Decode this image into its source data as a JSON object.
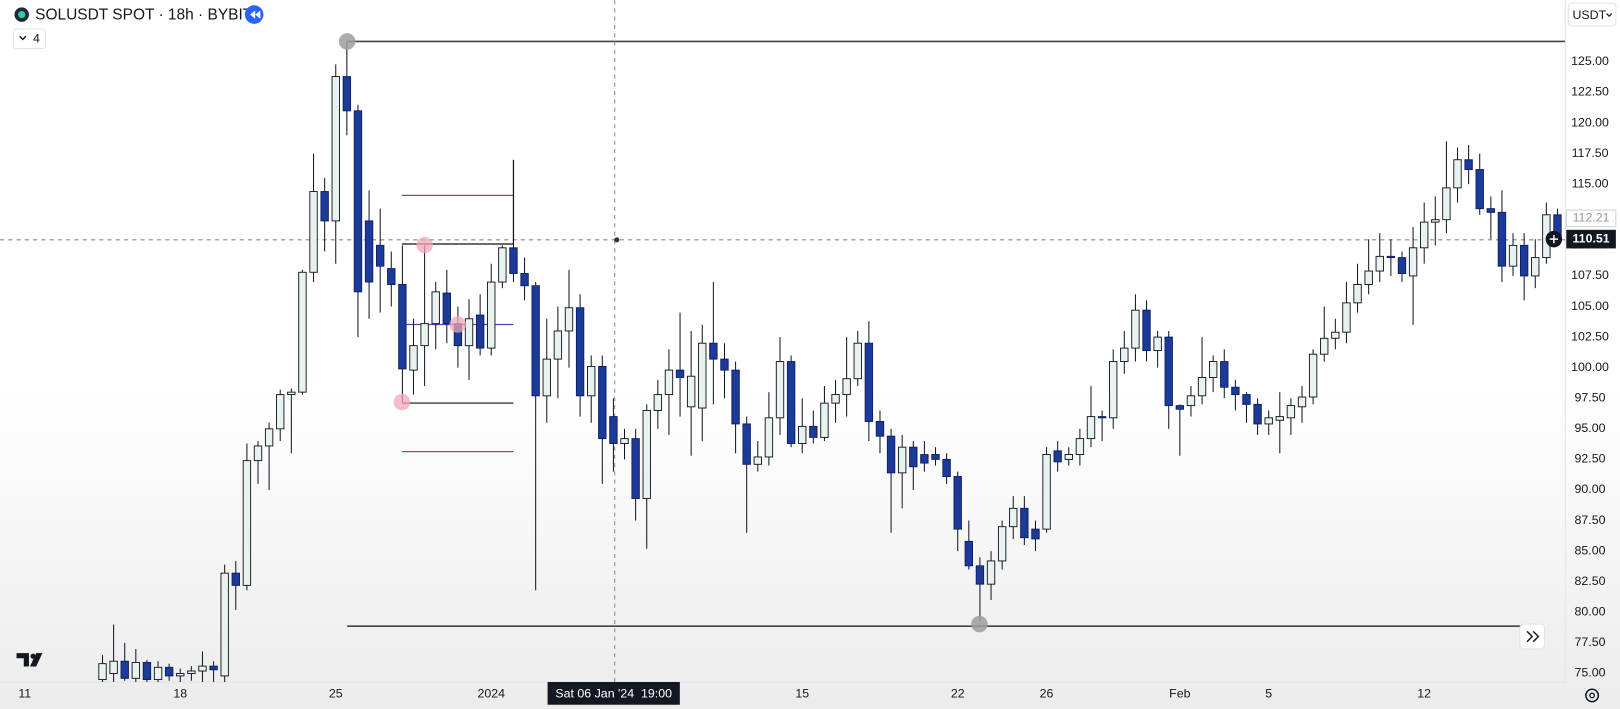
{
  "chart_data": {
    "type": "candlestick",
    "title": "SOLUSDT SPOT · 18h · BYBIT",
    "indicators_collapsed": "4",
    "currency": "USDT",
    "crosshair_time": "Sat 06 Jan '24  19:00",
    "last_price": 110.51,
    "prev_price": 112.21,
    "up_color": "#e8f3ef",
    "down_color": "#1c3a98",
    "grid": false,
    "xlim": [
      -2.23,
      138.7
    ],
    "xticks": [
      {
        "value": 0,
        "label": "11"
      },
      {
        "value": 14,
        "label": "18"
      },
      {
        "value": 28,
        "label": "25"
      },
      {
        "value": 42,
        "label": "2024"
      },
      {
        "value": 70,
        "label": "15"
      },
      {
        "value": 84,
        "label": "22"
      },
      {
        "value": 92,
        "label": "26"
      },
      {
        "value": 104,
        "label": "Feb"
      },
      {
        "value": 112,
        "label": "5"
      },
      {
        "value": 126,
        "label": "12"
      }
    ],
    "ylim": [
      74.3,
      130.05
    ],
    "yticks": [
      {
        "value": 75,
        "label": "75.00"
      },
      {
        "value": 77.5,
        "label": "77.50"
      },
      {
        "value": 80,
        "label": "80.00"
      },
      {
        "value": 82.5,
        "label": "82.50"
      },
      {
        "value": 85,
        "label": "85.00"
      },
      {
        "value": 87.5,
        "label": "87.50"
      },
      {
        "value": 90,
        "label": "90.00"
      },
      {
        "value": 92.5,
        "label": "92.50"
      },
      {
        "value": 95,
        "label": "95.00"
      },
      {
        "value": 97.5,
        "label": "97.50"
      },
      {
        "value": 100,
        "label": "100.00"
      },
      {
        "value": 102.5,
        "label": "102.50"
      },
      {
        "value": 105,
        "label": "105.00"
      },
      {
        "value": 107.5,
        "label": "107.50"
      },
      {
        "value": 110,
        "label": "110.00"
      },
      {
        "value": 112.5,
        "label": "112.50"
      },
      {
        "value": 115,
        "label": "115.00"
      },
      {
        "value": 117.5,
        "label": "117.50"
      },
      {
        "value": 120,
        "label": "120.00"
      },
      {
        "value": 122.5,
        "label": "122.50"
      },
      {
        "value": 125,
        "label": "125.00"
      }
    ],
    "open": [
      null,
      null,
      null,
      null,
      null,
      null,
      null,
      74.5,
      75.0,
      76.0,
      74.6,
      75.9,
      74.5,
      75.5,
      74.8,
      75.0,
      75.2,
      75.6,
      74.8,
      83.2,
      82.2,
      92.4,
      93.6,
      95.0,
      97.8,
      98.0,
      107.8,
      114.4,
      112.0,
      123.8,
      121.0,
      112.0,
      110.0,
      108.1,
      106.8,
      99.8,
      101.8,
      103.6,
      106.1,
      103.6,
      101.8,
      104.3,
      101.6,
      107.0,
      109.8,
      107.7,
      106.7,
      97.7,
      100.7,
      103.0,
      104.9,
      97.7,
      100.1,
      96.0,
      93.8,
      94.2,
      89.3,
      96.5,
      97.8,
      99.8,
      96.8,
      96.7,
      102.0,
      100.7,
      99.8,
      95.4,
      92.1,
      92.7,
      95.9,
      100.5,
      93.8,
      95.2,
      94.3,
      97.1,
      97.8,
      99.1,
      102.0,
      95.6,
      94.4,
      91.4,
      93.5,
      92.9,
      92.9,
      92.5,
      91.1,
      85.8,
      83.8,
      82.3,
      84.2,
      87.0,
      88.5,
      86.8,
      86.8,
      93.2,
      92.5,
      92.9,
      94.2,
      96.0,
      95.9,
      100.5,
      101.6,
      104.7,
      101.4,
      102.5,
      96.9,
      96.9,
      97.7,
      99.2,
      100.5,
      98.4,
      97.8,
      97.0,
      95.4,
      95.7,
      95.9,
      96.8,
      97.6,
      101.1,
      102.4,
      102.9,
      105.3,
      106.8,
      107.9,
      109.1,
      109.0,
      107.5,
      109.8,
      111.9,
      112.1,
      114.7,
      117.0,
      116.2,
      113.0,
      112.7,
      108.3,
      110.0,
      107.5,
      109.0,
      112.5
    ],
    "high": [
      null,
      null,
      null,
      null,
      null,
      null,
      null,
      76.5,
      79.0,
      77.5,
      77.0,
      76.1,
      76.0,
      75.8,
      75.4,
      75.6,
      76.8,
      76.0,
      83.9,
      84.2,
      93.8,
      94.0,
      95.5,
      98.2,
      98.3,
      108.0,
      117.5,
      115.5,
      124.8,
      126.7,
      121.5,
      114.5,
      113.0,
      109.5,
      110.0,
      104.0,
      110.0,
      107.0,
      108.0,
      105.0,
      105.6,
      106.0,
      108.5,
      110.0,
      117.0,
      109.0,
      107.0,
      104.0,
      105.0,
      108.0,
      106.0,
      101.0,
      101.0,
      97.5,
      95.0,
      95.0,
      97.0,
      99.0,
      101.5,
      104.5,
      103.0,
      103.5,
      107.0,
      102.0,
      100.5,
      96.0,
      94.0,
      98.0,
      102.5,
      101.0,
      97.5,
      96.5,
      98.5,
      99.0,
      102.5,
      103.0,
      103.8,
      96.5,
      95.0,
      94.5,
      94.0,
      94.0,
      93.5,
      93.0,
      91.5,
      87.5,
      84.5,
      85.0,
      87.5,
      89.5,
      89.5,
      87.5,
      93.5,
      94.0,
      93.5,
      95.0,
      98.5,
      96.5,
      101.5,
      103.0,
      106.0,
      105.5,
      103.0,
      103.0,
      97.0,
      98.5,
      102.5,
      101.0,
      101.5,
      99.0,
      98.0,
      97.5,
      96.5,
      98.0,
      97.5,
      98.5,
      101.5,
      105.0,
      104.0,
      107.0,
      108.5,
      110.5,
      111.0,
      110.5,
      109.5,
      111.5,
      113.5,
      114.0,
      118.5,
      118.0,
      118.2,
      117.5,
      114.0,
      114.5,
      111.0,
      111.0,
      110.5,
      113.5,
      113.0
    ],
    "low": [
      null,
      null,
      null,
      null,
      null,
      null,
      null,
      74.3,
      74.3,
      74.4,
      74.3,
      74.3,
      74.3,
      74.4,
      74.3,
      74.4,
      74.3,
      74.3,
      74.3,
      80.2,
      81.8,
      90.5,
      90.0,
      94.0,
      93.0,
      97.8,
      107.0,
      109.5,
      108.5,
      119.0,
      102.5,
      104.0,
      104.5,
      105.0,
      97.2,
      97.8,
      98.5,
      101.5,
      102.0,
      100.0,
      99.0,
      101.0,
      101.0,
      106.5,
      107.0,
      105.5,
      81.8,
      95.5,
      97.5,
      100.0,
      96.0,
      95.5,
      90.5,
      91.5,
      92.5,
      87.5,
      85.2,
      95.0,
      94.5,
      96.0,
      92.8,
      94.0,
      97.0,
      97.5,
      93.0,
      86.5,
      91.5,
      92.0,
      94.5,
      93.5,
      93.0,
      93.8,
      94.0,
      95.5,
      96.0,
      98.5,
      94.0,
      93.0,
      86.5,
      88.5,
      90.0,
      91.5,
      92.0,
      90.5,
      85.0,
      83.5,
      79.3,
      81.0,
      83.5,
      86.0,
      85.5,
      85.0,
      86.5,
      91.5,
      92.0,
      92.0,
      93.5,
      94.0,
      95.0,
      99.5,
      100.5,
      100.5,
      100.0,
      95.0,
      92.8,
      96.0,
      97.0,
      98.0,
      97.5,
      96.5,
      95.5,
      94.5,
      94.5,
      93.0,
      94.5,
      95.5,
      97.0,
      100.5,
      101.5,
      102.0,
      104.5,
      106.0,
      107.0,
      107.5,
      107.0,
      103.5,
      108.5,
      110.0,
      111.0,
      113.5,
      115.0,
      112.5,
      110.5,
      107.0,
      107.5,
      105.5,
      106.5,
      108.5,
      110.0
    ],
    "close": [
      null,
      null,
      null,
      null,
      null,
      null,
      null,
      75.8,
      76.0,
      74.6,
      75.9,
      74.5,
      75.5,
      74.8,
      75.0,
      75.2,
      75.6,
      75.3,
      83.2,
      82.2,
      92.4,
      93.6,
      95.0,
      97.8,
      98.0,
      107.8,
      114.4,
      112.0,
      123.8,
      121.0,
      106.2,
      107.0,
      108.3,
      106.8,
      99.9,
      101.8,
      103.6,
      106.2,
      103.6,
      101.8,
      104.0,
      101.6,
      107.0,
      109.8,
      107.7,
      106.7,
      97.7,
      100.7,
      103.0,
      104.9,
      97.7,
      100.1,
      94.2,
      93.8,
      94.2,
      89.3,
      96.5,
      97.8,
      99.8,
      99.2,
      99.3,
      102.0,
      100.7,
      99.8,
      95.4,
      92.1,
      92.7,
      95.9,
      100.5,
      93.8,
      95.2,
      94.3,
      97.1,
      97.8,
      99.1,
      102.0,
      95.6,
      94.4,
      91.4,
      93.5,
      91.9,
      92.2,
      92.5,
      91.1,
      86.8,
      83.8,
      82.3,
      84.2,
      87.0,
      88.5,
      86.1,
      86.0,
      92.9,
      92.3,
      92.9,
      94.2,
      96.0,
      95.9,
      100.5,
      101.6,
      104.7,
      101.4,
      102.5,
      96.9,
      96.6,
      97.7,
      99.2,
      100.5,
      98.4,
      97.8,
      97.0,
      95.4,
      95.9,
      96.0,
      96.9,
      97.6,
      101.1,
      102.4,
      102.9,
      105.3,
      106.8,
      107.9,
      109.1,
      109.0,
      107.7,
      109.8,
      111.9,
      112.1,
      114.7,
      117.0,
      116.2,
      113.0,
      112.7,
      108.3,
      110.0,
      107.5,
      109.0,
      112.5,
      110.51
    ]
  }
}
